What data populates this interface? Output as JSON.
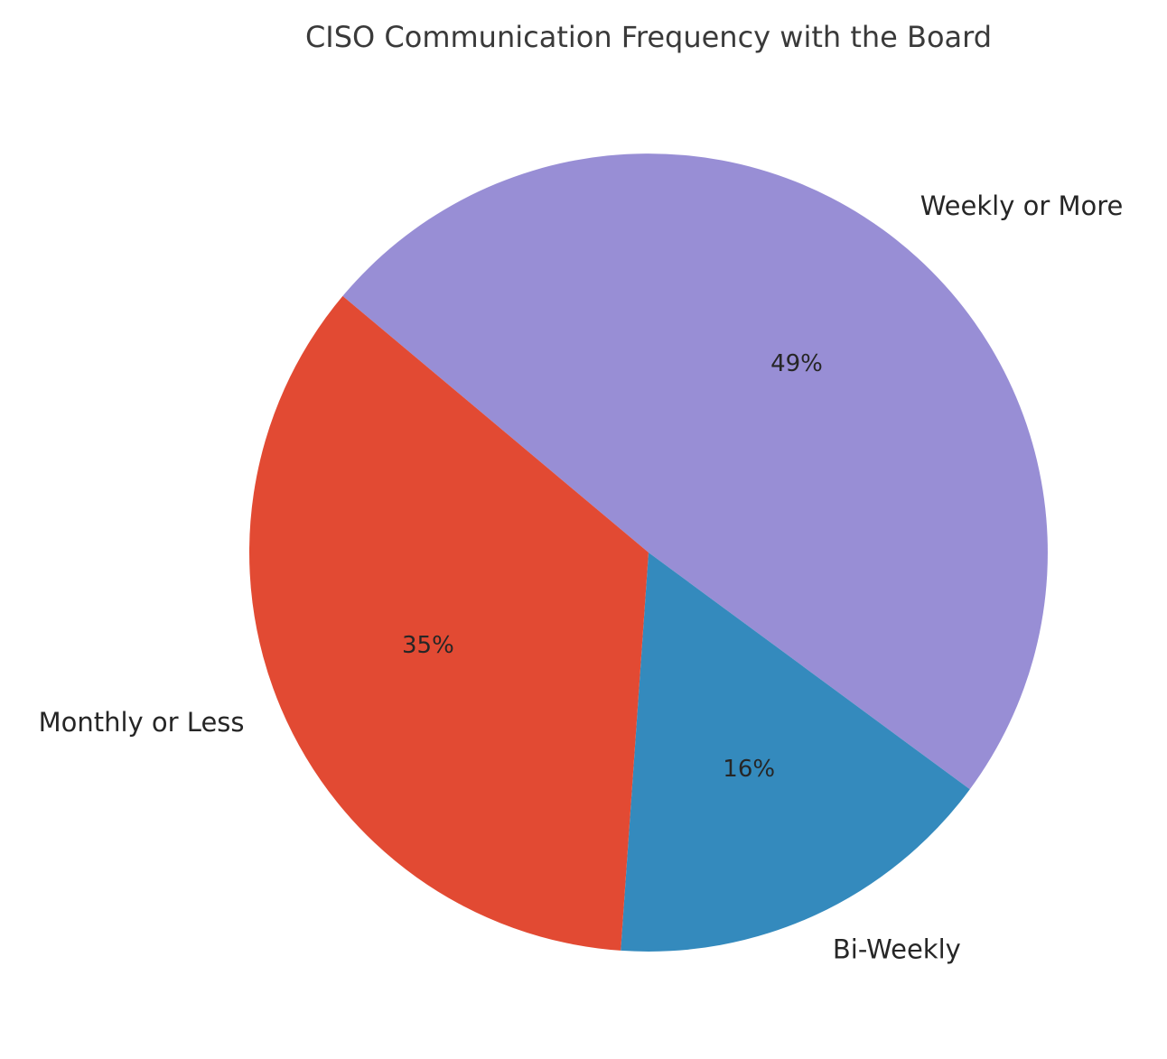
{
  "chart_data": {
    "type": "pie",
    "title": "CISO Communication Frequency with the Board",
    "labels": [
      "Weekly or More",
      "Bi-Weekly",
      "Monthly or Less"
    ],
    "values": [
      49,
      16,
      35
    ],
    "percent_labels": [
      "49%",
      "16%",
      "35%"
    ],
    "colors": [
      "#988ED5",
      "#348ABD",
      "#E24A33"
    ],
    "text_color": "#262626",
    "title_color": "#3a3a3a",
    "background": "#ffffff",
    "start_angle_deg": 140,
    "direction": "clockwise",
    "label_distance": 1.1,
    "pct_distance": 0.6,
    "legend": "none",
    "labels_position": "outside"
  }
}
